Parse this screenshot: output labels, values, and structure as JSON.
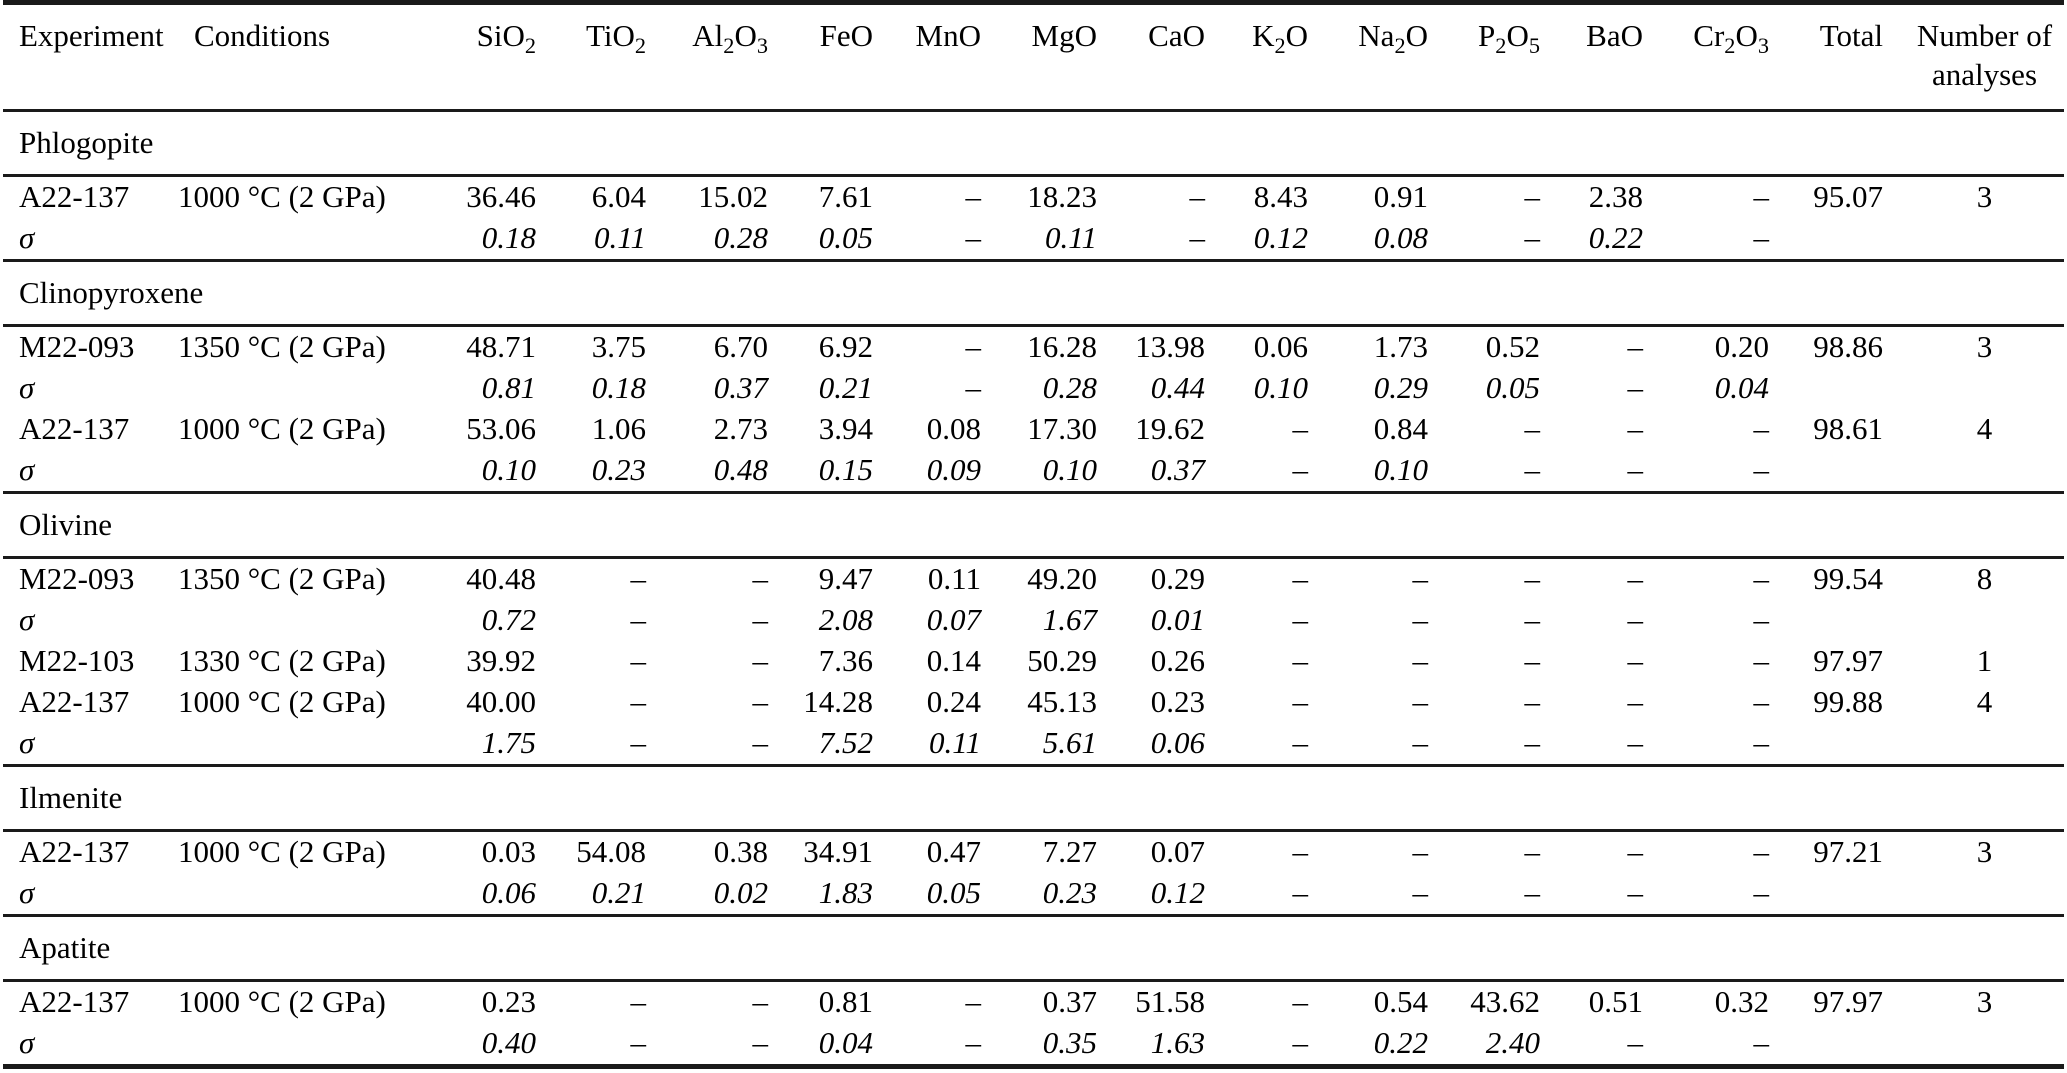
{
  "colors": {
    "background": "#ffffff",
    "text": "#000000",
    "rule": "#1a1a1a"
  },
  "table": {
    "columns": [
      "Experiment",
      "Conditions",
      "SiO_2",
      "TiO_2",
      "Al_2O_3",
      "FeO",
      "MnO",
      "MgO",
      "CaO",
      "K_2O",
      "Na_2O",
      "P_2O_5",
      "BaO",
      "Cr_2O_3",
      "Total",
      "Number of\nanalyses"
    ],
    "sections": [
      {
        "name": "Phlogopite",
        "rows": [
          {
            "experiment": "A22-137",
            "conditions": "1000 °C (2 GPa)",
            "sigma": false,
            "values": [
              "36.46",
              "6.04",
              "15.02",
              "7.61",
              "–",
              "18.23",
              "–",
              "8.43",
              "0.91",
              "–",
              "2.38",
              "–",
              "95.07",
              "3"
            ]
          },
          {
            "experiment": "σ",
            "conditions": "",
            "sigma": true,
            "values": [
              "0.18",
              "0.11",
              "0.28",
              "0.05",
              "–",
              "0.11",
              "–",
              "0.12",
              "0.08",
              "–",
              "0.22",
              "–",
              "",
              ""
            ]
          }
        ]
      },
      {
        "name": "Clinopyroxene",
        "rows": [
          {
            "experiment": "M22-093",
            "conditions": "1350 °C (2 GPa)",
            "sigma": false,
            "values": [
              "48.71",
              "3.75",
              "6.70",
              "6.92",
              "–",
              "16.28",
              "13.98",
              "0.06",
              "1.73",
              "0.52",
              "–",
              "0.20",
              "98.86",
              "3"
            ]
          },
          {
            "experiment": "σ",
            "conditions": "",
            "sigma": true,
            "values": [
              "0.81",
              "0.18",
              "0.37",
              "0.21",
              "–",
              "0.28",
              "0.44",
              "0.10",
              "0.29",
              "0.05",
              "–",
              "0.04",
              "",
              ""
            ]
          },
          {
            "experiment": "A22-137",
            "conditions": "1000 °C (2 GPa)",
            "sigma": false,
            "values": [
              "53.06",
              "1.06",
              "2.73",
              "3.94",
              "0.08",
              "17.30",
              "19.62",
              "–",
              "0.84",
              "–",
              "–",
              "–",
              "98.61",
              "4"
            ]
          },
          {
            "experiment": "σ",
            "conditions": "",
            "sigma": true,
            "values": [
              "0.10",
              "0.23",
              "0.48",
              "0.15",
              "0.09",
              "0.10",
              "0.37",
              "–",
              "0.10",
              "–",
              "–",
              "–",
              "",
              ""
            ]
          }
        ]
      },
      {
        "name": "Olivine",
        "rows": [
          {
            "experiment": "M22-093",
            "conditions": "1350 °C (2 GPa)",
            "sigma": false,
            "values": [
              "40.48",
              "–",
              "–",
              "9.47",
              "0.11",
              "49.20",
              "0.29",
              "–",
              "–",
              "–",
              "–",
              "–",
              "99.54",
              "8"
            ]
          },
          {
            "experiment": "σ",
            "conditions": "",
            "sigma": true,
            "values": [
              "0.72",
              "–",
              "–",
              "2.08",
              "0.07",
              "1.67",
              "0.01",
              "–",
              "–",
              "–",
              "–",
              "–",
              "",
              ""
            ]
          },
          {
            "experiment": "M22-103",
            "conditions": "1330 °C (2 GPa)",
            "sigma": false,
            "values": [
              "39.92",
              "–",
              "–",
              "7.36",
              "0.14",
              "50.29",
              "0.26",
              "–",
              "–",
              "–",
              "–",
              "–",
              "97.97",
              "1"
            ]
          },
          {
            "experiment": "A22-137",
            "conditions": "1000 °C (2 GPa)",
            "sigma": false,
            "values": [
              "40.00",
              "–",
              "–",
              "14.28",
              "0.24",
              "45.13",
              "0.23",
              "–",
              "–",
              "–",
              "–",
              "–",
              "99.88",
              "4"
            ]
          },
          {
            "experiment": "σ",
            "conditions": "",
            "sigma": true,
            "values": [
              "1.75",
              "–",
              "–",
              "7.52",
              "0.11",
              "5.61",
              "0.06",
              "–",
              "–",
              "–",
              "–",
              "–",
              "",
              ""
            ]
          }
        ]
      },
      {
        "name": "Ilmenite",
        "rows": [
          {
            "experiment": "A22-137",
            "conditions": "1000 °C (2 GPa)",
            "sigma": false,
            "values": [
              "0.03",
              "54.08",
              "0.38",
              "34.91",
              "0.47",
              "7.27",
              "0.07",
              "–",
              "–",
              "–",
              "–",
              "–",
              "97.21",
              "3"
            ]
          },
          {
            "experiment": "σ",
            "conditions": "",
            "sigma": true,
            "values": [
              "0.06",
              "0.21",
              "0.02",
              "1.83",
              "0.05",
              "0.23",
              "0.12",
              "–",
              "–",
              "–",
              "–",
              "–",
              "",
              ""
            ]
          }
        ]
      },
      {
        "name": "Apatite",
        "rows": [
          {
            "experiment": "A22-137",
            "conditions": "1000 °C (2 GPa)",
            "sigma": false,
            "values": [
              "0.23",
              "–",
              "–",
              "0.81",
              "–",
              "0.37",
              "51.58",
              "–",
              "0.54",
              "43.62",
              "0.51",
              "0.32",
              "97.97",
              "3"
            ]
          },
          {
            "experiment": "σ",
            "conditions": "",
            "sigma": true,
            "values": [
              "0.40",
              "–",
              "–",
              "0.04",
              "–",
              "0.35",
              "1.63",
              "–",
              "0.22",
              "2.40",
              "–",
              "–",
              "",
              ""
            ]
          }
        ]
      }
    ]
  }
}
